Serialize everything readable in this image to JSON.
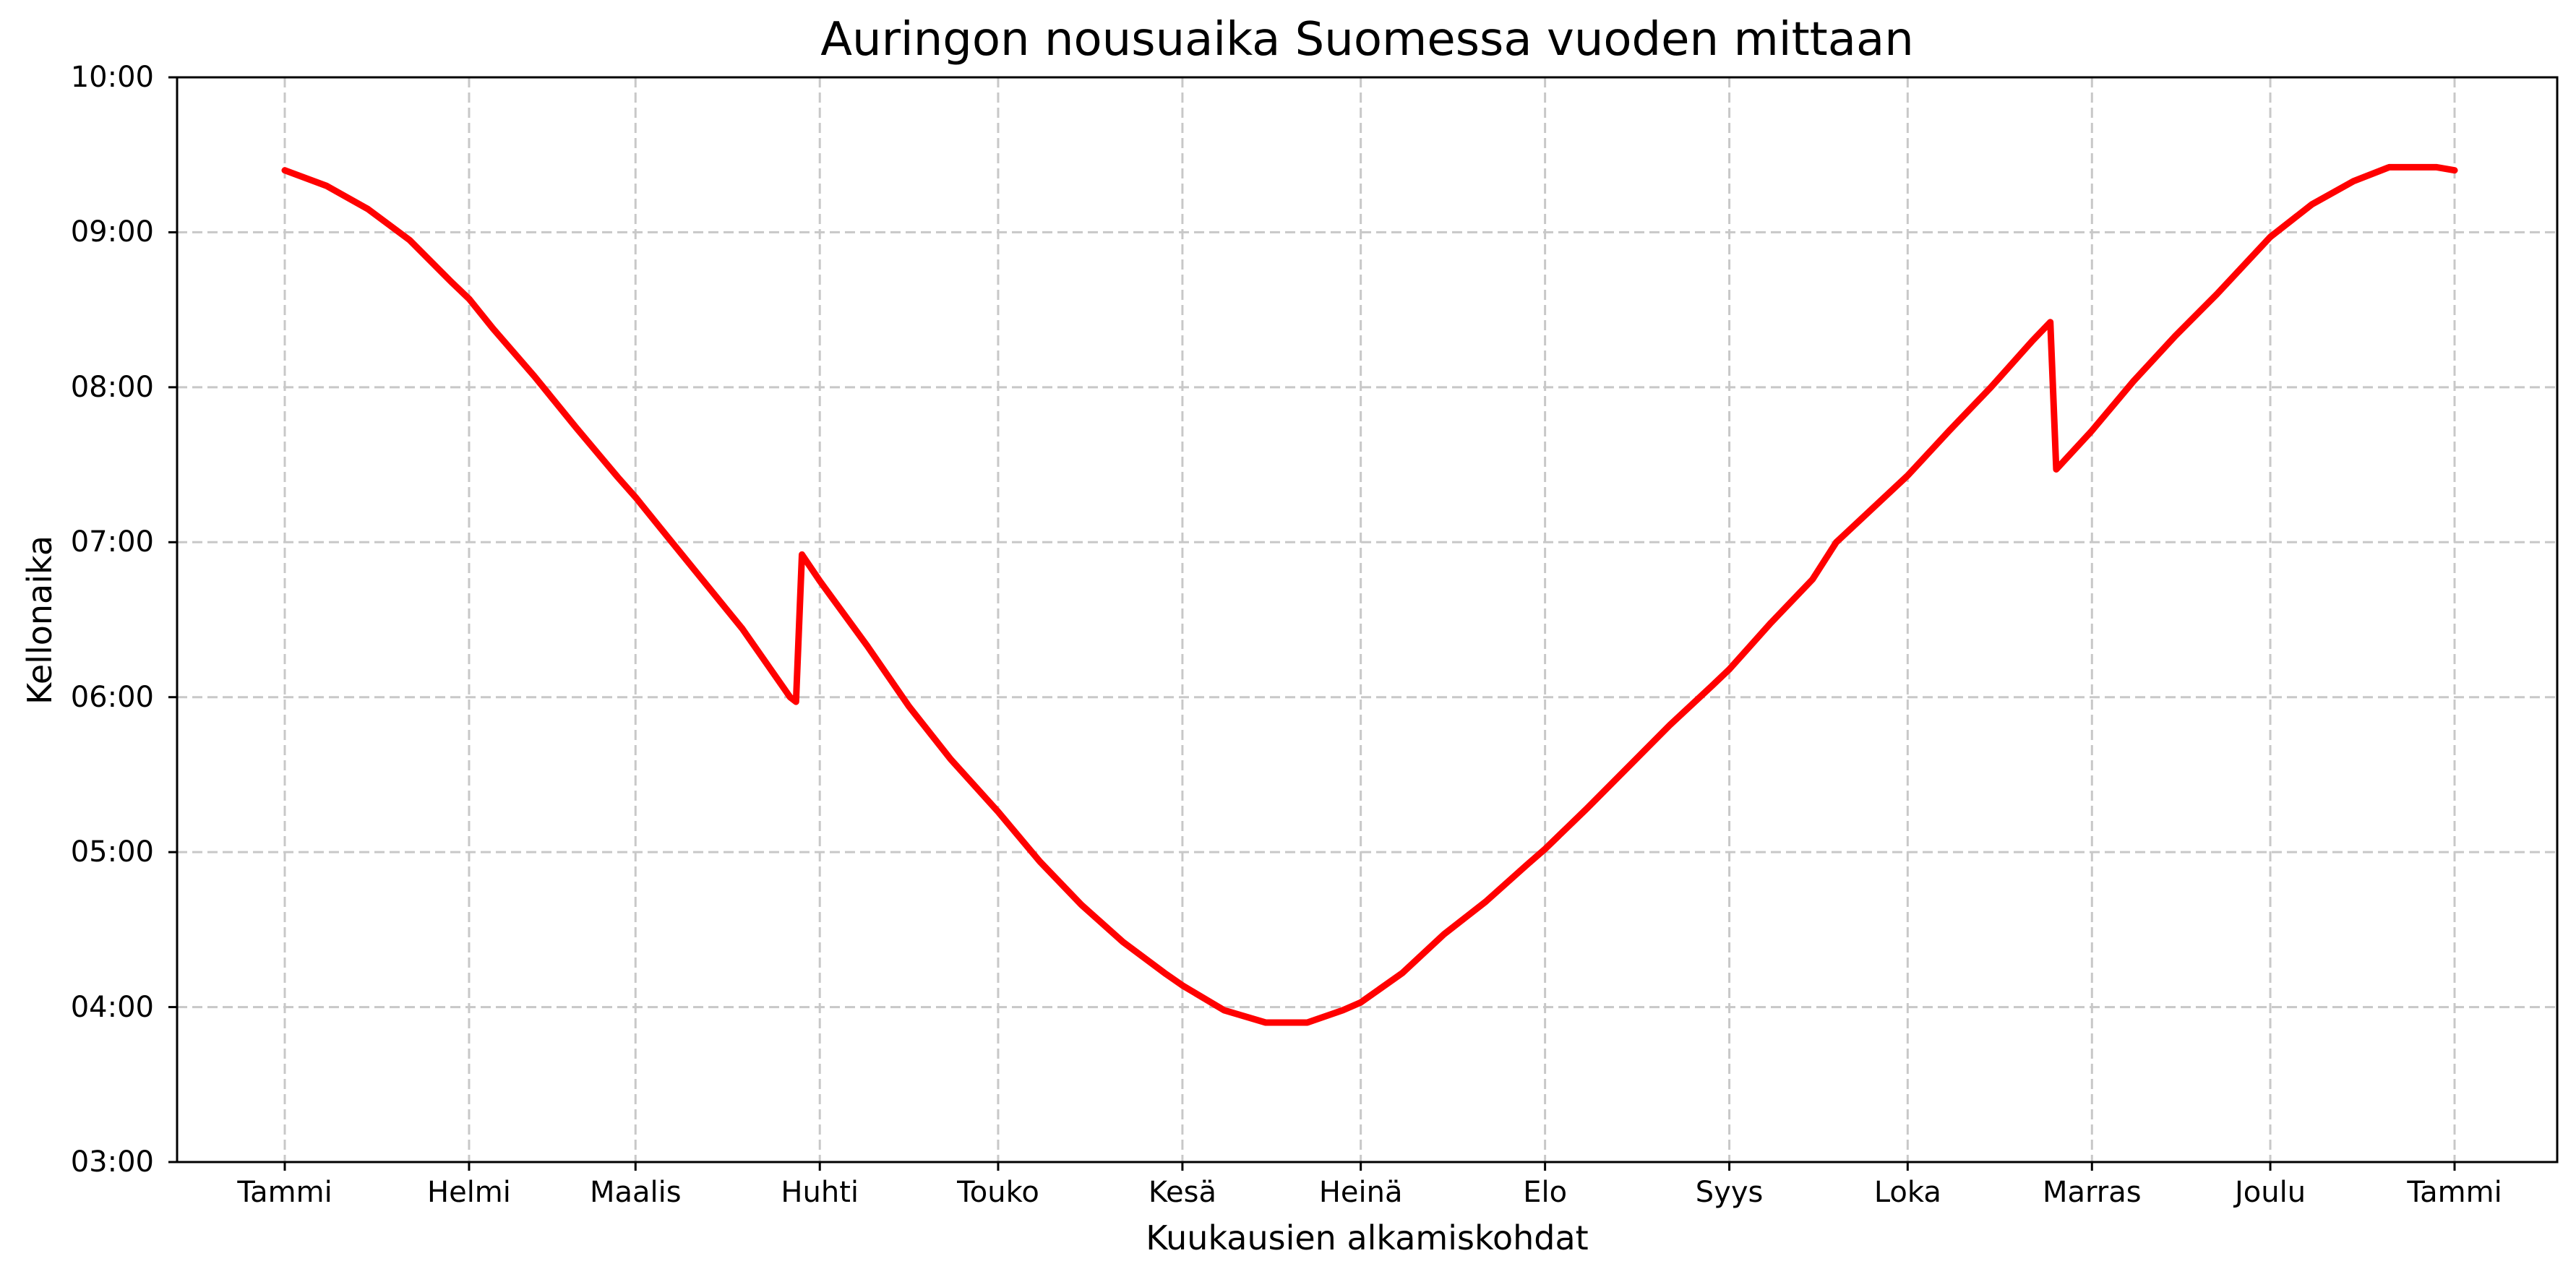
{
  "chart_data": {
    "type": "line",
    "title": "Auringon nousuaika Suomessa vuoden mittaan",
    "xlabel": "Kuukausien alkamiskohdat",
    "ylabel": "Kellonaika",
    "x_ticks": [
      {
        "label": "Tammi",
        "day": 0
      },
      {
        "label": "Helmi",
        "day": 31
      },
      {
        "label": "Maalis",
        "day": 59
      },
      {
        "label": "Huhti",
        "day": 90
      },
      {
        "label": "Touko",
        "day": 120
      },
      {
        "label": "Kesä",
        "day": 151
      },
      {
        "label": "Heinä",
        "day": 181
      },
      {
        "label": "Elo",
        "day": 212
      },
      {
        "label": "Syys",
        "day": 243
      },
      {
        "label": "Loka",
        "day": 273
      },
      {
        "label": "Marras",
        "day": 304
      },
      {
        "label": "Joulu",
        "day": 334
      },
      {
        "label": "Tammi",
        "day": 365
      }
    ],
    "y_ticks": [
      "03:00",
      "04:00",
      "05:00",
      "06:00",
      "07:00",
      "08:00",
      "09:00",
      "10:00"
    ],
    "ylim": [
      3,
      10
    ],
    "xlim": [
      -18,
      383
    ],
    "grid": true,
    "grid_style": "dashed",
    "legend": null,
    "series": [
      {
        "name": "Auringon nousuaika",
        "color": "#ff0000",
        "x_day_of_year": [
          0,
          7,
          14,
          21,
          28,
          31,
          35,
          42,
          49,
          56,
          59,
          63,
          70,
          77,
          85,
          86,
          87,
          90,
          98,
          105,
          112,
          120,
          127,
          134,
          141,
          148,
          151,
          158,
          165,
          172,
          178,
          181,
          188,
          195,
          202,
          209,
          212,
          219,
          226,
          233,
          240,
          243,
          250,
          257,
          261,
          273,
          280,
          287,
          294,
          297,
          298,
          304,
          311,
          318,
          325,
          334,
          341,
          348,
          354,
          362,
          365
        ],
        "y_hours": [
          9.4,
          9.3,
          9.15,
          8.95,
          8.68,
          8.57,
          8.38,
          8.07,
          7.74,
          7.42,
          7.29,
          7.1,
          6.77,
          6.44,
          6.0,
          5.97,
          6.92,
          6.75,
          6.33,
          5.94,
          5.6,
          5.26,
          4.94,
          4.66,
          4.42,
          4.22,
          4.14,
          3.98,
          3.9,
          3.9,
          3.98,
          4.03,
          4.22,
          4.47,
          4.68,
          4.92,
          5.02,
          5.28,
          5.55,
          5.82,
          6.07,
          6.18,
          6.48,
          6.76,
          7.0,
          7.43,
          7.72,
          8.0,
          8.3,
          8.42,
          7.47,
          7.72,
          8.04,
          8.33,
          8.6,
          8.97,
          9.18,
          9.33,
          9.42,
          9.42,
          9.4
        ]
      }
    ],
    "annotations": []
  },
  "colors": {
    "line": "#ff0000",
    "grid": "#c8c8c8",
    "axis": "#000000",
    "background": "#ffffff"
  }
}
